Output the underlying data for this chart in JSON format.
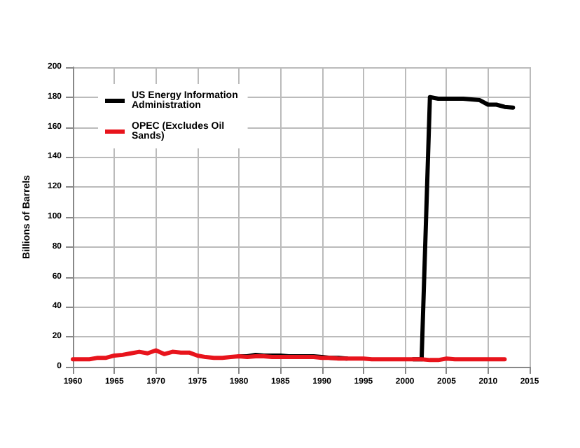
{
  "chart_data": {
    "type": "line",
    "ylabel": "Billions of Barrels",
    "xlim": [
      1960,
      2015
    ],
    "xticks": [
      1960,
      1965,
      1970,
      1975,
      1980,
      1985,
      1990,
      1995,
      2000,
      2005,
      2010,
      2015
    ],
    "ylim": [
      0,
      200
    ],
    "yticks": [
      0,
      20,
      40,
      60,
      80,
      100,
      120,
      140,
      160,
      180,
      200
    ],
    "grid": true,
    "legend": "top left",
    "marker": "none",
    "line_style": "solid",
    "series": [
      {
        "name": "US Energy Information Administration",
        "color": "#000000",
        "x": [
          1980,
          1981,
          1982,
          1983,
          1984,
          1985,
          1986,
          1987,
          1988,
          1989,
          1990,
          1991,
          1992,
          1993,
          1994,
          1995,
          1996,
          1997,
          1998,
          1999,
          2000,
          2001,
          2002,
          2003,
          2004,
          2005,
          2006,
          2007,
          2008,
          2009,
          2010,
          2011,
          2012,
          2013
        ],
        "values": [
          7,
          7,
          8,
          7.5,
          7.5,
          7.5,
          7,
          7,
          7,
          7,
          6.5,
          6,
          6,
          5.5,
          null,
          null,
          null,
          null,
          null,
          null,
          null,
          5,
          5,
          180,
          179,
          179,
          179,
          179,
          178.5,
          178,
          175,
          175,
          173.5,
          173
        ]
      },
      {
        "name": "OPEC (Excludes Oil Sands)",
        "color": "#e8141c",
        "x": [
          1960,
          1961,
          1962,
          1963,
          1964,
          1965,
          1966,
          1967,
          1968,
          1969,
          1970,
          1971,
          1972,
          1973,
          1974,
          1975,
          1976,
          1977,
          1978,
          1979,
          1980,
          1981,
          1982,
          1983,
          1984,
          1985,
          1986,
          1987,
          1988,
          1989,
          1990,
          1991,
          1992,
          1993,
          1994,
          1995,
          1996,
          1997,
          1998,
          1999,
          2000,
          2001,
          2002,
          2003,
          2004,
          2005,
          2006,
          2007,
          2008,
          2009,
          2010,
          2011,
          2012
        ],
        "values": [
          5,
          5,
          5,
          6,
          6,
          7.5,
          8,
          9,
          10,
          9,
          11,
          8.5,
          10,
          9.5,
          9.5,
          7.5,
          6.5,
          6,
          6,
          6.5,
          7,
          6.5,
          7,
          7,
          6.5,
          6.5,
          6.5,
          6.5,
          6.5,
          6.5,
          6,
          6,
          5.5,
          5.5,
          5.5,
          5.5,
          5,
          5,
          5,
          5,
          5,
          5,
          5,
          4.5,
          4.5,
          5.5,
          5,
          5,
          5,
          5,
          5,
          5,
          5
        ]
      }
    ]
  }
}
